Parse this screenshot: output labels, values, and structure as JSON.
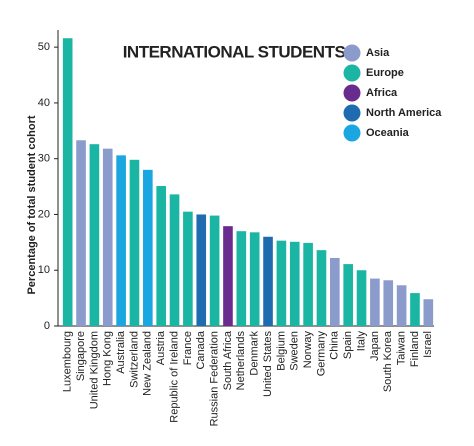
{
  "chart_data": {
    "type": "bar",
    "title": "INTERNATIONAL STUDENTS",
    "y_label": "Percentage of total student cohort",
    "categories": [
      "Luxembourg",
      "Singapore",
      "United Kingdom",
      "Hong Kong",
      "Australia",
      "Switzerland",
      "New Zealand",
      "Austria",
      "Republic of Ireland",
      "France",
      "Canada",
      "Russian Federation",
      "South Africa",
      "Netherlands",
      "Denmark",
      "United States",
      "Belgium",
      "Sweden",
      "Norway",
      "Germany",
      "China",
      "Spain",
      "Italy",
      "Japan",
      "South Korea",
      "Taiwan",
      "Finland",
      "Israel"
    ],
    "series": [
      {
        "name": "Asia",
        "color": "#8b9bcb",
        "values": [
          null,
          33.3,
          null,
          31.8,
          null,
          null,
          null,
          null,
          null,
          null,
          null,
          null,
          null,
          null,
          null,
          null,
          null,
          null,
          null,
          null,
          12.2,
          null,
          null,
          8.5,
          8.2,
          7.3,
          null,
          4.8
        ]
      },
      {
        "name": "Europe",
        "color": "#1bb5a4",
        "values": [
          51.6,
          null,
          32.6,
          null,
          null,
          29.8,
          null,
          25.1,
          23.6,
          20.5,
          null,
          19.8,
          null,
          17.0,
          16.8,
          null,
          15.3,
          15.1,
          14.9,
          13.6,
          null,
          11.1,
          10.0,
          null,
          null,
          null,
          5.9,
          null
        ]
      },
      {
        "name": "Africa",
        "color": "#6a2b8f",
        "values": [
          null,
          null,
          null,
          null,
          null,
          null,
          null,
          null,
          null,
          null,
          null,
          null,
          17.9,
          null,
          null,
          null,
          null,
          null,
          null,
          null,
          null,
          null,
          null,
          null,
          null,
          null,
          null,
          null
        ]
      },
      {
        "name": "North America",
        "color": "#1e6bb0",
        "values": [
          null,
          null,
          null,
          null,
          null,
          null,
          null,
          null,
          null,
          null,
          20.0,
          null,
          null,
          null,
          null,
          16.0,
          null,
          null,
          null,
          null,
          null,
          null,
          null,
          null,
          null,
          null,
          null,
          null
        ]
      },
      {
        "name": "Oceania",
        "color": "#1aa7e1",
        "values": [
          null,
          null,
          null,
          null,
          30.6,
          null,
          28.0,
          null,
          null,
          null,
          null,
          null,
          null,
          null,
          null,
          null,
          null,
          null,
          null,
          null,
          null,
          null,
          null,
          null,
          null,
          null,
          null,
          null
        ]
      }
    ],
    "ylim": [
      0,
      52
    ],
    "yticks": [
      0,
      10,
      20,
      30,
      40,
      50
    ],
    "grid": false
  }
}
